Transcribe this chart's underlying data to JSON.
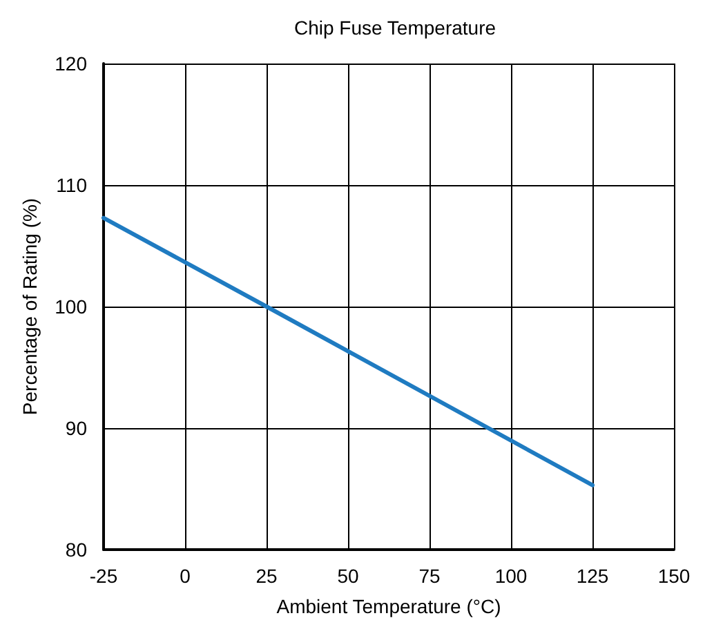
{
  "chart_data": {
    "type": "line",
    "title": "Chip Fuse Temperature",
    "xlabel": "Ambient Temperature (°C)",
    "ylabel": "Percentage of Rating (%)",
    "x": [
      -25,
      25,
      125
    ],
    "series": [
      {
        "color": "#1f7bc1",
        "values": [
          107.3,
          100,
          85.3
        ]
      }
    ],
    "xlim": [
      -25,
      150
    ],
    "xticks": [
      -25,
      0,
      25,
      50,
      75,
      100,
      125,
      150
    ],
    "ylim": [
      80,
      120
    ],
    "yticks": [
      80,
      90,
      100,
      110,
      120
    ],
    "grid": true,
    "marker": "none",
    "line_style": "solid"
  }
}
